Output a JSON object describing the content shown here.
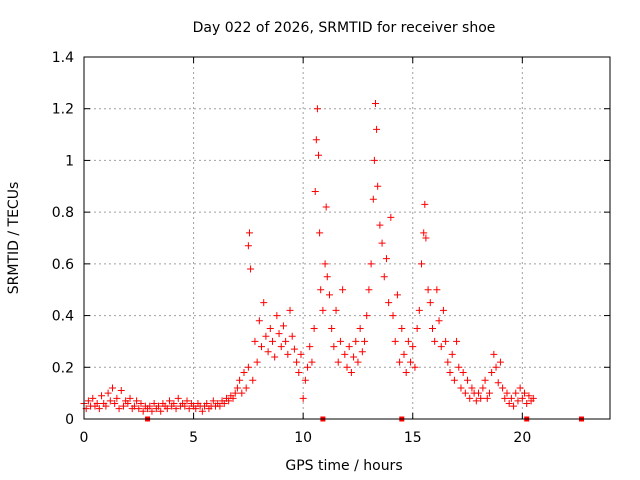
{
  "chart_data": {
    "type": "scatter",
    "title": "Day 022 of 2026, SRMTID for receiver shoe",
    "xlabel": "GPS time / hours",
    "ylabel": "SRMTID / TECUs",
    "xlim": [
      0,
      24
    ],
    "ylim": [
      0,
      1.4
    ],
    "x_ticks": [
      0,
      5,
      10,
      15,
      20
    ],
    "x_tick_labels": [
      "0",
      "5",
      "10",
      "15",
      "20"
    ],
    "y_ticks": [
      0,
      0.2,
      0.4,
      0.6,
      0.8,
      1.0,
      1.2,
      1.4
    ],
    "y_tick_labels": [
      "0",
      "0.2",
      "0.4",
      "0.6",
      "0.8",
      "1",
      "1.2",
      "1.4"
    ],
    "grid": true,
    "marker": "plus",
    "series": [
      {
        "name": "SRMTID",
        "color": "#ff0000",
        "points": [
          [
            0.0,
            0.06
          ],
          [
            0.1,
            0.04
          ],
          [
            0.2,
            0.07
          ],
          [
            0.3,
            0.05
          ],
          [
            0.4,
            0.08
          ],
          [
            0.5,
            0.05
          ],
          [
            0.6,
            0.06
          ],
          [
            0.7,
            0.04
          ],
          [
            0.8,
            0.09
          ],
          [
            0.9,
            0.06
          ],
          [
            1.0,
            0.05
          ],
          [
            1.1,
            0.1
          ],
          [
            1.2,
            0.07
          ],
          [
            1.3,
            0.12
          ],
          [
            1.4,
            0.06
          ],
          [
            1.5,
            0.08
          ],
          [
            1.6,
            0.04
          ],
          [
            1.7,
            0.11
          ],
          [
            1.8,
            0.05
          ],
          [
            1.9,
            0.07
          ],
          [
            2.0,
            0.06
          ],
          [
            2.1,
            0.08
          ],
          [
            2.2,
            0.04
          ],
          [
            2.3,
            0.05
          ],
          [
            2.4,
            0.07
          ],
          [
            2.5,
            0.04
          ],
          [
            2.6,
            0.06
          ],
          [
            2.7,
            0.03
          ],
          [
            2.8,
            0.05
          ],
          [
            2.9,
            0.04
          ],
          [
            3.0,
            0.05
          ],
          [
            3.1,
            0.03
          ],
          [
            3.2,
            0.06
          ],
          [
            3.3,
            0.04
          ],
          [
            3.4,
            0.05
          ],
          [
            3.5,
            0.03
          ],
          [
            3.6,
            0.06
          ],
          [
            3.7,
            0.05
          ],
          [
            3.8,
            0.04
          ],
          [
            3.9,
            0.07
          ],
          [
            4.0,
            0.05
          ],
          [
            4.1,
            0.06
          ],
          [
            4.2,
            0.04
          ],
          [
            4.3,
            0.08
          ],
          [
            4.4,
            0.05
          ],
          [
            4.5,
            0.06
          ],
          [
            4.6,
            0.05
          ],
          [
            4.7,
            0.07
          ],
          [
            4.8,
            0.04
          ],
          [
            4.9,
            0.06
          ],
          [
            5.0,
            0.05
          ],
          [
            5.1,
            0.04
          ],
          [
            5.2,
            0.06
          ],
          [
            5.3,
            0.05
          ],
          [
            5.4,
            0.03
          ],
          [
            5.5,
            0.05
          ],
          [
            5.6,
            0.06
          ],
          [
            5.7,
            0.04
          ],
          [
            5.8,
            0.05
          ],
          [
            5.9,
            0.07
          ],
          [
            6.0,
            0.05
          ],
          [
            6.1,
            0.06
          ],
          [
            6.2,
            0.05
          ],
          [
            6.3,
            0.07
          ],
          [
            6.4,
            0.06
          ],
          [
            6.5,
            0.08
          ],
          [
            6.6,
            0.07
          ],
          [
            6.7,
            0.09
          ],
          [
            6.8,
            0.08
          ],
          [
            6.9,
            0.1
          ],
          [
            7.0,
            0.12
          ],
          [
            7.1,
            0.15
          ],
          [
            7.2,
            0.1
          ],
          [
            7.3,
            0.18
          ],
          [
            7.4,
            0.12
          ],
          [
            7.5,
            0.2
          ],
          [
            7.5,
            0.67
          ],
          [
            7.55,
            0.72
          ],
          [
            7.6,
            0.58
          ],
          [
            7.7,
            0.15
          ],
          [
            7.8,
            0.3
          ],
          [
            7.9,
            0.22
          ],
          [
            8.0,
            0.38
          ],
          [
            8.1,
            0.28
          ],
          [
            8.2,
            0.45
          ],
          [
            8.3,
            0.32
          ],
          [
            8.4,
            0.26
          ],
          [
            8.5,
            0.35
          ],
          [
            8.6,
            0.3
          ],
          [
            8.7,
            0.24
          ],
          [
            8.8,
            0.4
          ],
          [
            8.9,
            0.33
          ],
          [
            9.0,
            0.28
          ],
          [
            9.1,
            0.36
          ],
          [
            9.2,
            0.3
          ],
          [
            9.3,
            0.25
          ],
          [
            9.4,
            0.42
          ],
          [
            9.5,
            0.32
          ],
          [
            9.6,
            0.27
          ],
          [
            9.7,
            0.22
          ],
          [
            9.8,
            0.18
          ],
          [
            9.9,
            0.25
          ],
          [
            10.0,
            0.08
          ],
          [
            10.1,
            0.15
          ],
          [
            10.2,
            0.2
          ],
          [
            10.3,
            0.28
          ],
          [
            10.4,
            0.22
          ],
          [
            10.5,
            0.35
          ],
          [
            10.55,
            0.88
          ],
          [
            10.6,
            1.08
          ],
          [
            10.65,
            1.2
          ],
          [
            10.7,
            1.02
          ],
          [
            10.75,
            0.72
          ],
          [
            10.8,
            0.5
          ],
          [
            10.9,
            0.42
          ],
          [
            11.0,
            0.6
          ],
          [
            11.05,
            0.82
          ],
          [
            11.1,
            0.55
          ],
          [
            11.2,
            0.48
          ],
          [
            11.3,
            0.35
          ],
          [
            11.4,
            0.28
          ],
          [
            11.5,
            0.42
          ],
          [
            11.6,
            0.22
          ],
          [
            11.7,
            0.3
          ],
          [
            11.8,
            0.5
          ],
          [
            11.9,
            0.25
          ],
          [
            12.0,
            0.2
          ],
          [
            12.1,
            0.28
          ],
          [
            12.2,
            0.18
          ],
          [
            12.3,
            0.24
          ],
          [
            12.4,
            0.3
          ],
          [
            12.5,
            0.22
          ],
          [
            12.6,
            0.35
          ],
          [
            12.7,
            0.26
          ],
          [
            12.8,
            0.3
          ],
          [
            12.9,
            0.4
          ],
          [
            13.0,
            0.5
          ],
          [
            13.1,
            0.6
          ],
          [
            13.2,
            0.85
          ],
          [
            13.25,
            1.0
          ],
          [
            13.3,
            1.22
          ],
          [
            13.35,
            1.12
          ],
          [
            13.4,
            0.9
          ],
          [
            13.5,
            0.75
          ],
          [
            13.6,
            0.68
          ],
          [
            13.7,
            0.55
          ],
          [
            13.8,
            0.62
          ],
          [
            13.9,
            0.45
          ],
          [
            14.0,
            0.78
          ],
          [
            14.1,
            0.4
          ],
          [
            14.2,
            0.3
          ],
          [
            14.3,
            0.48
          ],
          [
            14.4,
            0.22
          ],
          [
            14.5,
            0.35
          ],
          [
            14.6,
            0.25
          ],
          [
            14.7,
            0.18
          ],
          [
            14.8,
            0.3
          ],
          [
            14.9,
            0.22
          ],
          [
            15.0,
            0.28
          ],
          [
            15.1,
            0.2
          ],
          [
            15.2,
            0.35
          ],
          [
            15.3,
            0.42
          ],
          [
            15.4,
            0.6
          ],
          [
            15.5,
            0.72
          ],
          [
            15.55,
            0.83
          ],
          [
            15.6,
            0.7
          ],
          [
            15.7,
            0.5
          ],
          [
            15.8,
            0.45
          ],
          [
            15.9,
            0.35
          ],
          [
            16.0,
            0.3
          ],
          [
            16.1,
            0.5
          ],
          [
            16.2,
            0.38
          ],
          [
            16.3,
            0.28
          ],
          [
            16.4,
            0.42
          ],
          [
            16.5,
            0.3
          ],
          [
            16.6,
            0.22
          ],
          [
            16.7,
            0.18
          ],
          [
            16.8,
            0.25
          ],
          [
            16.9,
            0.15
          ],
          [
            17.0,
            0.3
          ],
          [
            17.1,
            0.2
          ],
          [
            17.2,
            0.12
          ],
          [
            17.3,
            0.18
          ],
          [
            17.4,
            0.1
          ],
          [
            17.5,
            0.15
          ],
          [
            17.6,
            0.08
          ],
          [
            17.7,
            0.12
          ],
          [
            17.8,
            0.1
          ],
          [
            17.9,
            0.07
          ],
          [
            18.0,
            0.1
          ],
          [
            18.1,
            0.08
          ],
          [
            18.2,
            0.12
          ],
          [
            18.3,
            0.15
          ],
          [
            18.4,
            0.08
          ],
          [
            18.5,
            0.1
          ],
          [
            18.6,
            0.18
          ],
          [
            18.7,
            0.25
          ],
          [
            18.8,
            0.2
          ],
          [
            18.9,
            0.14
          ],
          [
            19.0,
            0.22
          ],
          [
            19.1,
            0.12
          ],
          [
            19.2,
            0.08
          ],
          [
            19.3,
            0.1
          ],
          [
            19.4,
            0.06
          ],
          [
            19.5,
            0.08
          ],
          [
            19.6,
            0.05
          ],
          [
            19.7,
            0.1
          ],
          [
            19.8,
            0.07
          ],
          [
            19.9,
            0.12
          ],
          [
            20.0,
            0.08
          ],
          [
            20.1,
            0.1
          ],
          [
            20.2,
            0.06
          ],
          [
            20.3,
            0.09
          ],
          [
            20.4,
            0.07
          ],
          [
            20.5,
            0.08
          ]
        ]
      }
    ],
    "zero_points_x": [
      2.9,
      10.9,
      14.5,
      20.2,
      22.7
    ]
  }
}
